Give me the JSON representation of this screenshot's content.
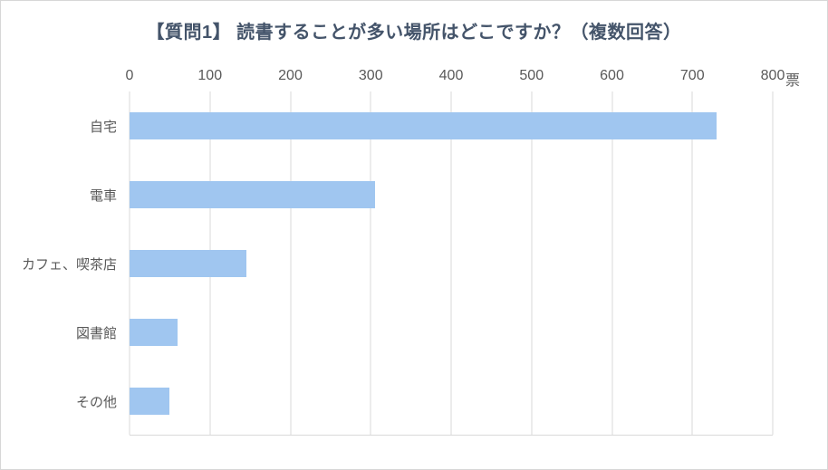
{
  "colors": {
    "title": "#44546A",
    "axis_text": "#595959",
    "gridline": "#D9D9D9",
    "bar": "#A0C6F0",
    "border": "#D7D7D7"
  },
  "chart_data": {
    "type": "bar",
    "orientation": "horizontal",
    "title": "【質問1】 読書することが多い場所はどこですか？（複数回答）",
    "unit_label": "票",
    "categories": [
      "自宅",
      "電車",
      "カフェ、喫茶店",
      "図書館",
      "その他"
    ],
    "values": [
      730,
      305,
      145,
      60,
      50
    ],
    "xlabel": "",
    "ylabel": "",
    "xlim": [
      0,
      800
    ],
    "ticks": [
      0,
      100,
      200,
      300,
      400,
      500,
      600,
      700,
      800
    ],
    "grid": true,
    "legend": false
  }
}
